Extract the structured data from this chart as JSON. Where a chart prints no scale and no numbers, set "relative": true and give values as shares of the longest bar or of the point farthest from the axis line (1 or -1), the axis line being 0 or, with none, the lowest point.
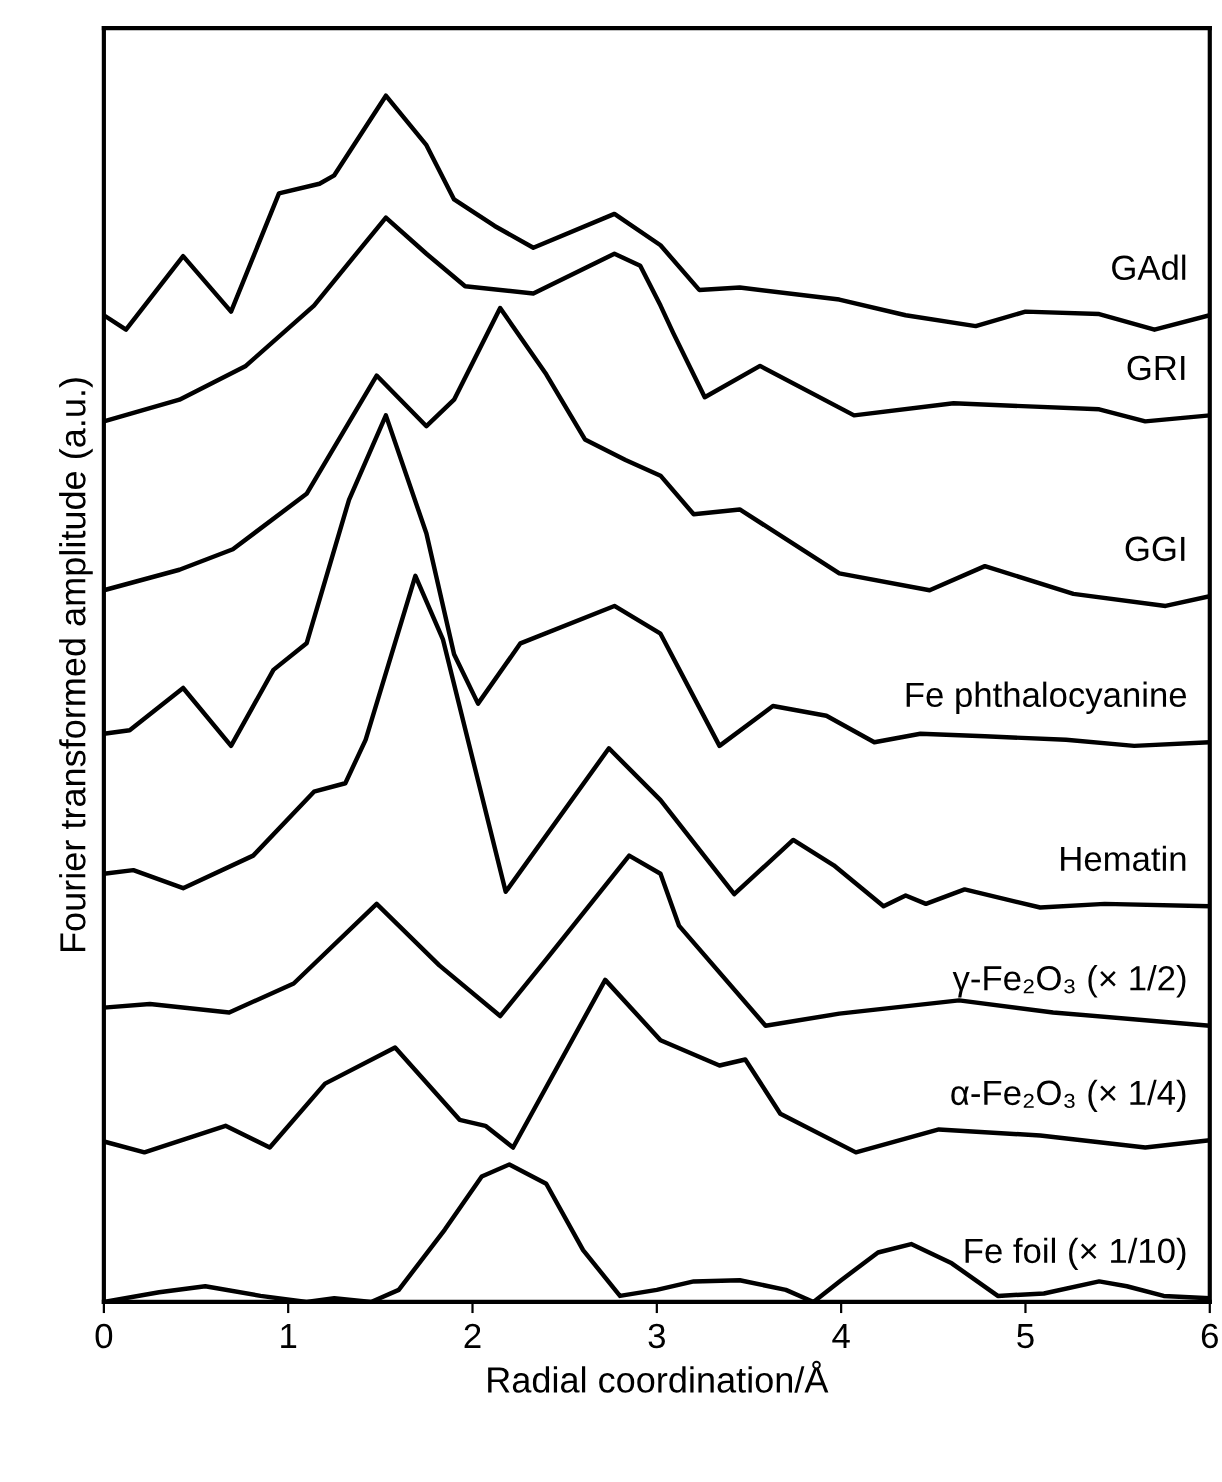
{
  "chart_data": {
    "type": "line",
    "relative": true,
    "xlabel": "Radial coordination/Å",
    "ylabel": "Fourier transformed amplitude (a.u.)",
    "xlim": [
      0,
      6
    ],
    "xticks": [
      0,
      1,
      2,
      3,
      4,
      5,
      6
    ],
    "grid": false,
    "legend": false,
    "marker": "none",
    "line_style": "solid",
    "series": [
      {
        "name": "GAdl",
        "color": "#000000",
        "x": [
          0,
          0.12,
          0.43,
          0.69,
          0.95,
          1.17,
          1.25,
          1.53,
          1.75,
          1.9,
          2.12,
          2.33,
          2.77,
          3.02,
          3.23,
          3.45,
          3.99,
          4.35,
          4.73,
          5.0,
          5.4,
          5.7,
          6
        ],
        "values": [
          0.818,
          0.806,
          0.867,
          0.821,
          0.919,
          0.927,
          0.934,
          1.0,
          0.959,
          0.914,
          0.892,
          0.874,
          0.902,
          0.876,
          0.839,
          0.841,
          0.831,
          0.818,
          0.809,
          0.821,
          0.819,
          0.806,
          0.818
        ]
      },
      {
        "name": "GRI",
        "color": "#000000",
        "x": [
          0,
          0.41,
          0.77,
          1.14,
          1.53,
          1.75,
          1.96,
          2.33,
          2.77,
          2.91,
          3.02,
          3.09,
          3.26,
          3.56,
          4.07,
          4.61,
          5.4,
          5.65,
          6
        ],
        "values": [
          0.73,
          0.748,
          0.776,
          0.826,
          0.899,
          0.869,
          0.842,
          0.836,
          0.869,
          0.859,
          0.826,
          0.803,
          0.75,
          0.776,
          0.735,
          0.745,
          0.74,
          0.73,
          0.735
        ]
      },
      {
        "name": "GGI",
        "color": "#000000",
        "x": [
          0,
          0.41,
          0.7,
          1.1,
          1.48,
          1.75,
          1.9,
          2.15,
          2.4,
          2.61,
          2.83,
          3.02,
          3.2,
          3.45,
          3.99,
          4.48,
          4.78,
          5.26,
          5.76,
          6
        ],
        "values": [
          0.59,
          0.607,
          0.624,
          0.67,
          0.768,
          0.726,
          0.748,
          0.824,
          0.769,
          0.715,
          0.698,
          0.685,
          0.653,
          0.657,
          0.604,
          0.59,
          0.61,
          0.587,
          0.577,
          0.585
        ]
      },
      {
        "name": "Fe phthalocyanine",
        "color": "#000000",
        "x": [
          0,
          0.14,
          0.43,
          0.69,
          0.92,
          1.1,
          1.33,
          1.53,
          1.75,
          1.9,
          2.03,
          2.26,
          2.77,
          3.02,
          3.34,
          3.63,
          3.92,
          4.18,
          4.43,
          4.78,
          5.22,
          5.59,
          6
        ],
        "values": [
          0.471,
          0.474,
          0.509,
          0.461,
          0.524,
          0.546,
          0.665,
          0.735,
          0.637,
          0.537,
          0.496,
          0.546,
          0.577,
          0.554,
          0.461,
          0.494,
          0.486,
          0.464,
          0.471,
          0.469,
          0.466,
          0.461,
          0.464
        ]
      },
      {
        "name": "Hematin",
        "color": "#000000",
        "x": [
          0,
          0.16,
          0.43,
          0.81,
          1.14,
          1.31,
          1.42,
          1.69,
          1.84,
          2.18,
          2.74,
          3.02,
          3.42,
          3.74,
          3.96,
          4.23,
          4.35,
          4.46,
          4.67,
          5.08,
          5.43,
          6
        ],
        "values": [
          0.355,
          0.358,
          0.343,
          0.37,
          0.423,
          0.43,
          0.466,
          0.602,
          0.549,
          0.34,
          0.459,
          0.416,
          0.338,
          0.383,
          0.362,
          0.328,
          0.337,
          0.33,
          0.342,
          0.327,
          0.33,
          0.328
        ]
      },
      {
        "name": "γ-Fe₂O₃ (× 1/2)",
        "color": "#000000",
        "x": [
          0,
          0.25,
          0.68,
          1.03,
          1.48,
          1.82,
          2.15,
          2.4,
          2.85,
          3.02,
          3.12,
          3.59,
          3.99,
          4.64,
          5.15,
          6
        ],
        "values": [
          0.244,
          0.247,
          0.24,
          0.264,
          0.33,
          0.279,
          0.237,
          0.284,
          0.37,
          0.355,
          0.312,
          0.229,
          0.239,
          0.25,
          0.24,
          0.229
        ]
      },
      {
        "name": "α-Fe₂O₃ (× 1/4)",
        "color": "#000000",
        "x": [
          0,
          0.22,
          0.66,
          0.9,
          1.2,
          1.58,
          1.93,
          2.07,
          2.22,
          2.72,
          3.02,
          3.34,
          3.48,
          3.67,
          4.08,
          4.53,
          5.08,
          5.65,
          6
        ],
        "values": [
          0.133,
          0.124,
          0.146,
          0.128,
          0.181,
          0.211,
          0.151,
          0.146,
          0.128,
          0.267,
          0.217,
          0.196,
          0.201,
          0.156,
          0.124,
          0.143,
          0.138,
          0.128,
          0.134
        ]
      },
      {
        "name": "Fe foil (× 1/10)",
        "color": "#000000",
        "x": [
          0,
          0.3,
          0.55,
          0.85,
          1.1,
          1.25,
          1.45,
          1.6,
          1.85,
          2.05,
          2.2,
          2.4,
          2.6,
          2.8,
          3.0,
          3.2,
          3.45,
          3.7,
          3.85,
          4.0,
          4.2,
          4.38,
          4.6,
          4.85,
          5.1,
          5.4,
          5.55,
          5.75,
          6
        ],
        "values": [
          0,
          0.008,
          0.013,
          0.005,
          0,
          0.003,
          0,
          0.01,
          0.06,
          0.104,
          0.114,
          0.098,
          0.043,
          0.005,
          0.01,
          0.017,
          0.018,
          0.01,
          0,
          0.018,
          0.041,
          0.048,
          0.032,
          0.005,
          0.007,
          0.017,
          0.013,
          0.005,
          0.003
        ]
      }
    ]
  }
}
